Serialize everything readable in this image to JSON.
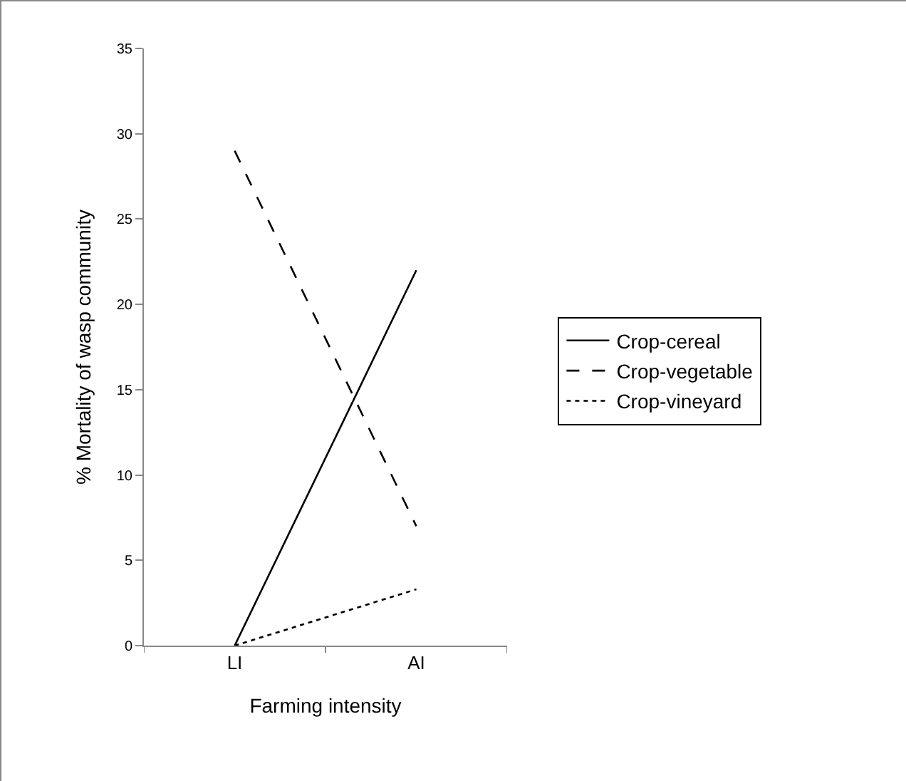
{
  "chart_data": {
    "type": "line",
    "xlabel": "Farming intensity",
    "ylabel": "% Mortality of wasp community",
    "categories": [
      "LI",
      "AI"
    ],
    "series": [
      {
        "name": "Crop-cereal",
        "color": "#000000",
        "line_style": "solid",
        "values": [
          0,
          22
        ]
      },
      {
        "name": "Crop-vegetable",
        "color": "#000000",
        "line_style": "dashed",
        "values": [
          29,
          7
        ]
      },
      {
        "name": "Crop-vineyard",
        "color": "#000000",
        "line_style": "dotted",
        "values": [
          0,
          3.3
        ]
      }
    ],
    "ylim": [
      0,
      35
    ],
    "yticks": [
      0,
      5,
      10,
      15,
      20,
      25,
      30,
      35
    ],
    "grid": false,
    "legend": "right",
    "marker": "none"
  }
}
